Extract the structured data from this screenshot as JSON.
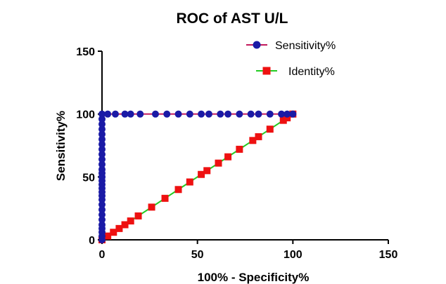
{
  "chart_data": {
    "type": "line",
    "title": "ROC of AST U/L",
    "xlabel": "100% - Specificity%",
    "ylabel": "Sensitivity%",
    "xlim": [
      0,
      150
    ],
    "ylim": [
      0,
      150
    ],
    "xticks": [
      "0",
      "50",
      "100",
      "150"
    ],
    "yticks": [
      "0",
      "50",
      "100",
      "150"
    ],
    "grid": false,
    "legend_position": "top-right",
    "series": [
      {
        "name": "Sensitivity%",
        "color": "#1a1aa6",
        "line_color": "#c2185b",
        "marker": "circle",
        "points": [
          [
            0,
            0
          ],
          [
            0,
            3
          ],
          [
            0,
            6
          ],
          [
            0,
            9
          ],
          [
            0,
            12
          ],
          [
            0,
            16
          ],
          [
            0,
            20
          ],
          [
            0,
            24
          ],
          [
            0,
            28
          ],
          [
            0,
            32
          ],
          [
            0,
            35
          ],
          [
            0,
            38
          ],
          [
            0,
            41
          ],
          [
            0,
            44
          ],
          [
            0,
            47
          ],
          [
            0,
            50
          ],
          [
            0,
            53
          ],
          [
            0,
            56
          ],
          [
            0,
            60
          ],
          [
            0,
            64
          ],
          [
            0,
            68
          ],
          [
            0,
            72
          ],
          [
            0,
            76
          ],
          [
            0,
            80
          ],
          [
            0,
            84
          ],
          [
            0,
            88
          ],
          [
            0,
            92
          ],
          [
            0,
            96
          ],
          [
            0,
            100
          ],
          [
            3,
            100
          ],
          [
            7,
            100
          ],
          [
            12,
            100
          ],
          [
            15,
            100
          ],
          [
            20,
            100
          ],
          [
            28,
            100
          ],
          [
            34,
            100
          ],
          [
            40,
            100
          ],
          [
            46,
            100
          ],
          [
            52,
            100
          ],
          [
            56,
            100
          ],
          [
            62,
            100
          ],
          [
            66,
            100
          ],
          [
            72,
            100
          ],
          [
            78,
            100
          ],
          [
            82,
            100
          ],
          [
            88,
            100
          ],
          [
            94,
            100
          ],
          [
            97,
            100
          ],
          [
            100,
            100
          ]
        ]
      },
      {
        "name": "Identity%",
        "color": "#ee1111",
        "line_color": "#22cc22",
        "marker": "square",
        "points": [
          [
            0,
            0
          ],
          [
            3,
            3
          ],
          [
            6,
            6
          ],
          [
            9,
            9
          ],
          [
            12,
            12
          ],
          [
            15,
            15
          ],
          [
            19,
            19
          ],
          [
            26,
            26
          ],
          [
            33,
            33
          ],
          [
            40,
            40
          ],
          [
            46,
            46
          ],
          [
            52,
            52
          ],
          [
            55,
            55
          ],
          [
            61,
            61
          ],
          [
            66,
            66
          ],
          [
            72,
            72
          ],
          [
            79,
            79
          ],
          [
            82,
            82
          ],
          [
            88,
            88
          ],
          [
            95,
            95
          ],
          [
            97,
            97
          ],
          [
            100,
            100
          ]
        ]
      }
    ]
  }
}
